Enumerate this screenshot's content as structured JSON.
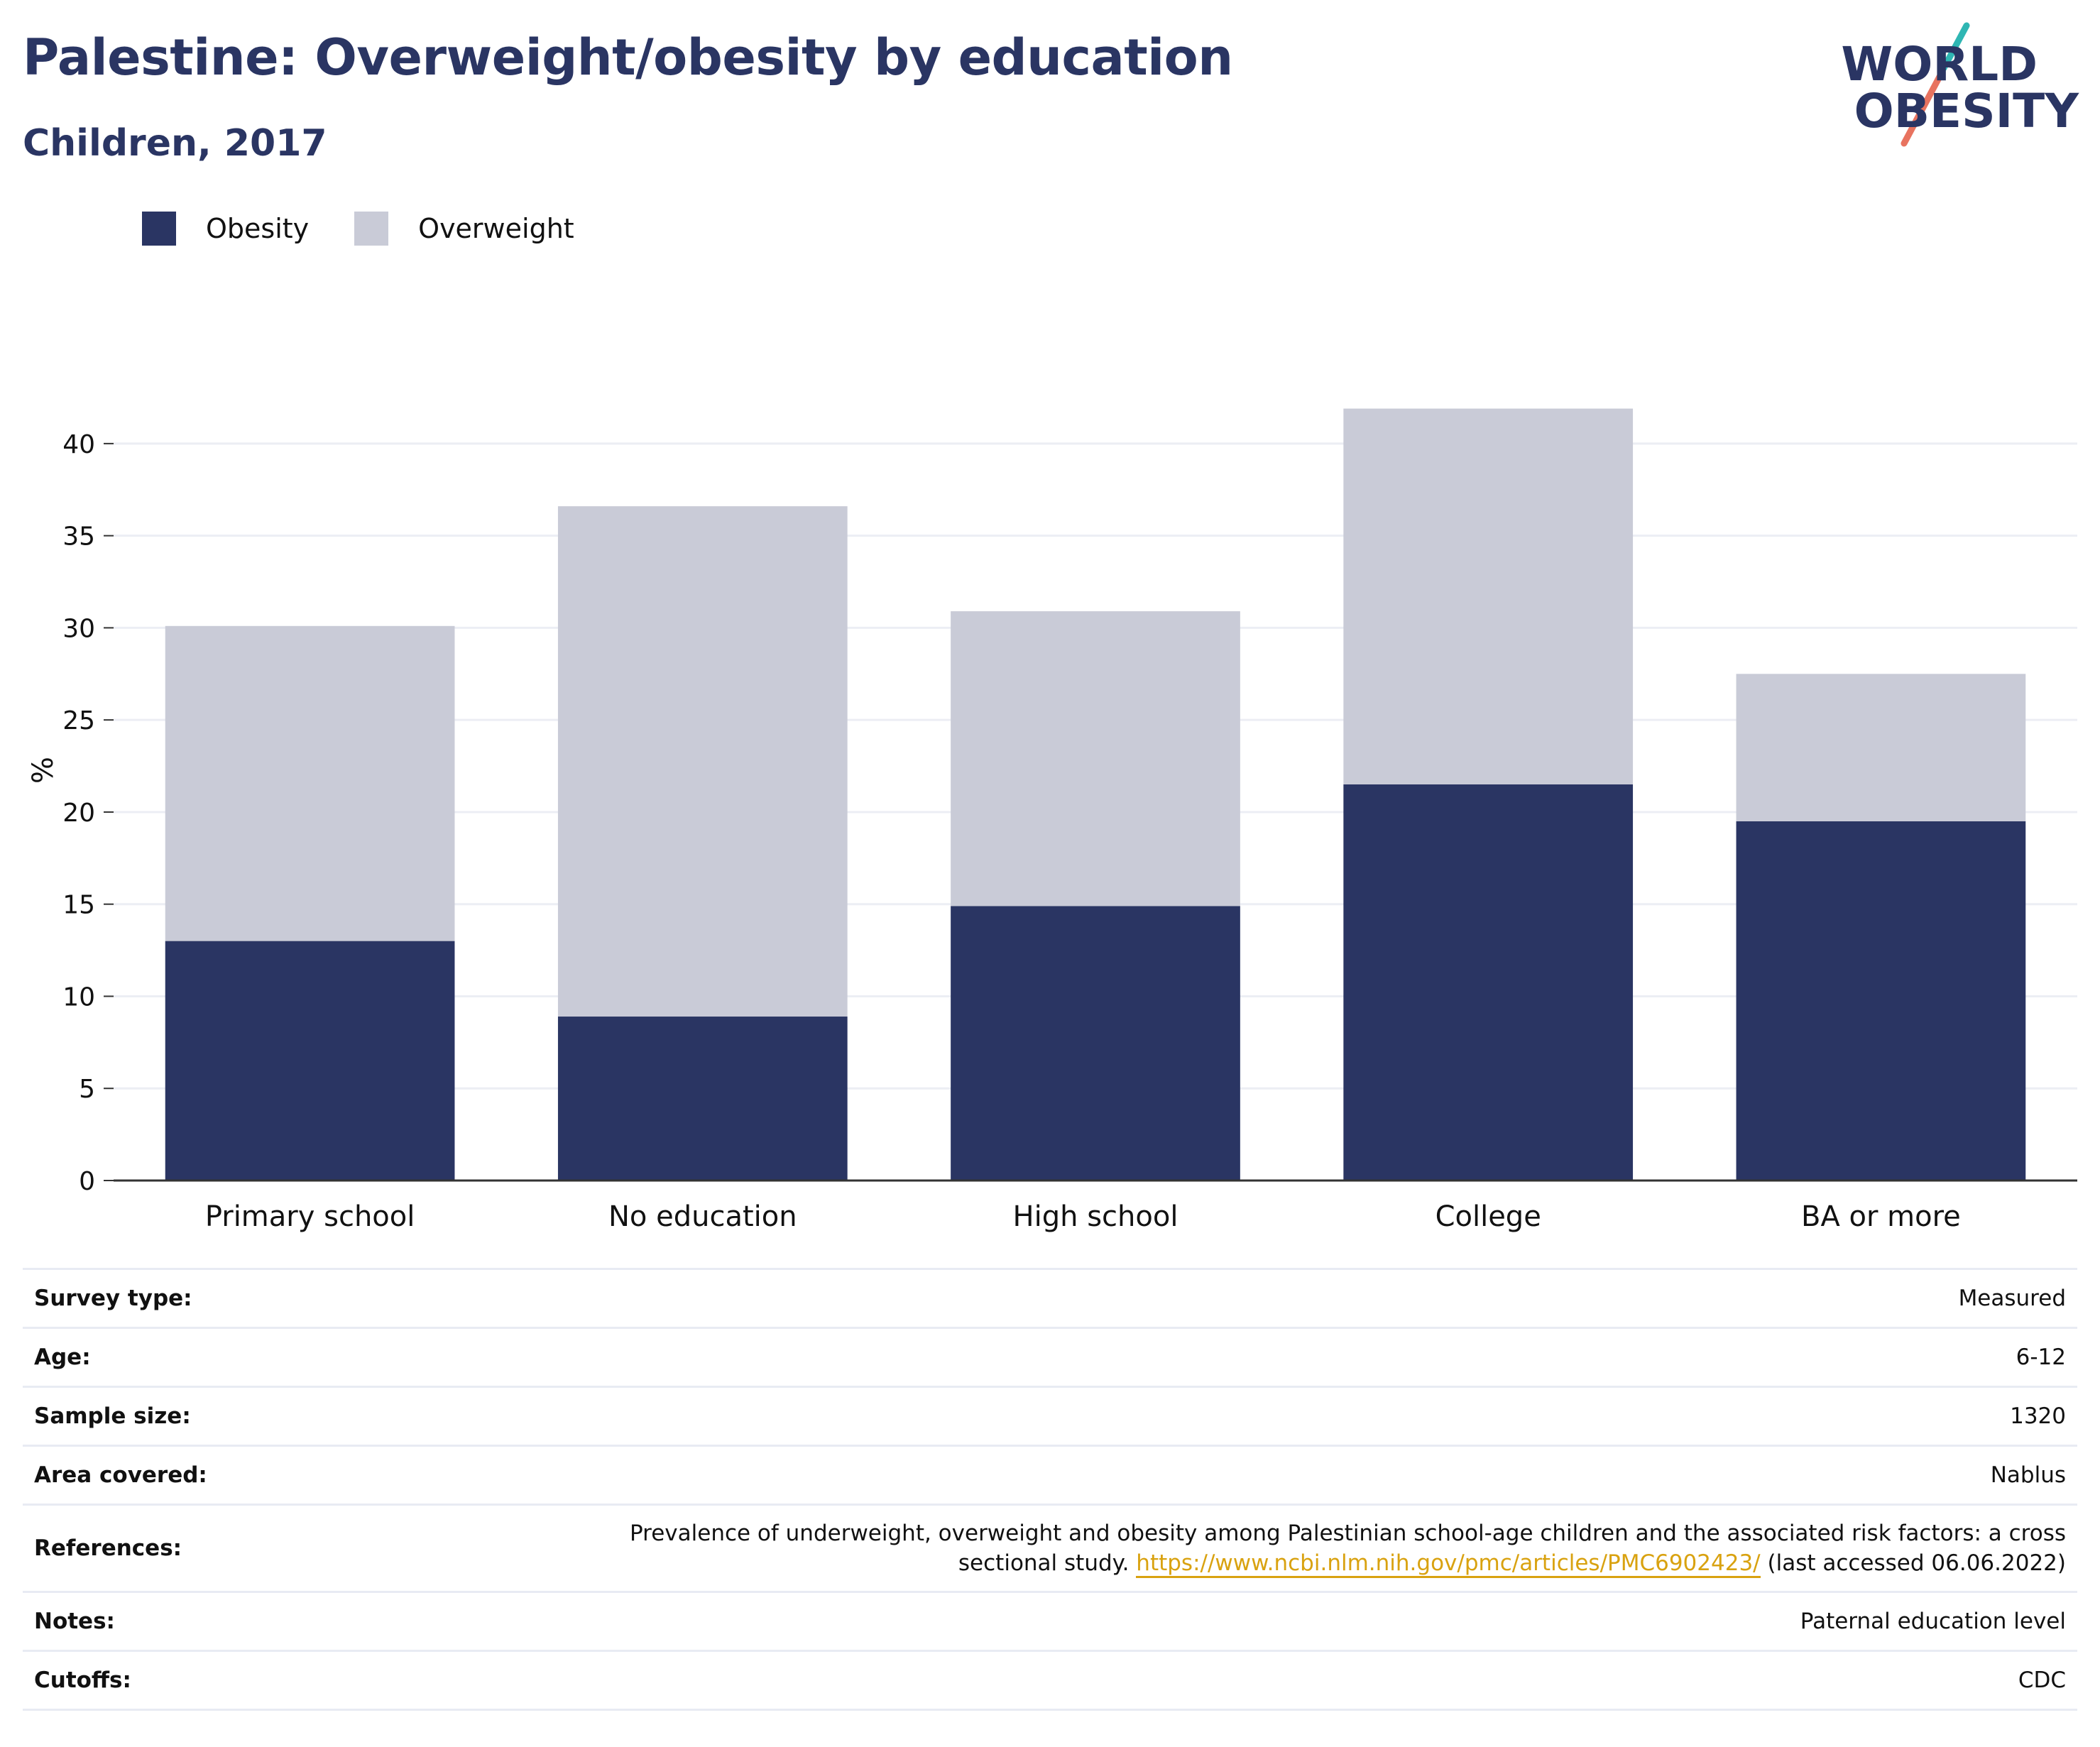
{
  "title": "Palestine: Overweight/obesity by education",
  "subtitle": "Children, 2017",
  "logo": {
    "line1": "WORLD",
    "line2": "OBESITY",
    "accent_teal": "#2fb6b3",
    "accent_coral": "#e8735f"
  },
  "colors": {
    "obesity": "#2a3563",
    "overweight": "#c9cbd7",
    "title": "#2a3563",
    "link": "#d9a210"
  },
  "chart_data": {
    "type": "bar",
    "stacked": true,
    "categories": [
      "Primary school",
      "No education",
      "High school",
      "College",
      "BA or more"
    ],
    "series": [
      {
        "name": "Obesity",
        "values": [
          13.0,
          8.9,
          14.9,
          21.5,
          19.5
        ]
      },
      {
        "name": "Overweight",
        "values": [
          17.1,
          27.7,
          16.0,
          20.4,
          8.0
        ]
      }
    ],
    "title": "Palestine: Overweight/obesity by education",
    "subtitle": "Children, 2017",
    "xlabel": "",
    "ylabel": "%",
    "ylim": [
      0,
      42.5
    ],
    "yticks": [
      0,
      5,
      10,
      15,
      20,
      25,
      30,
      35,
      40
    ],
    "grid": true,
    "legend_position": "top-left"
  },
  "info": {
    "survey_type": {
      "label": "Survey type:",
      "value": "Measured"
    },
    "age": {
      "label": "Age:",
      "value": "6-12"
    },
    "sample_size": {
      "label": "Sample size:",
      "value": "1320"
    },
    "area": {
      "label": "Area covered:",
      "value": "Nablus"
    },
    "references": {
      "label": "References:",
      "text_line1": "Prevalence of underweight, overweight and obesity among Palestinian school-age children and the associated risk factors: a cross",
      "text_line2": "sectional study.",
      "link": "https://www.ncbi.nlm.nih.gov/pmc/articles/PMC6902423/",
      "suffix": "(last accessed 06.06.2022)"
    },
    "notes": {
      "label": "Notes:",
      "value": "Paternal education level"
    },
    "cutoffs": {
      "label": "Cutoffs:",
      "value": "CDC"
    }
  }
}
